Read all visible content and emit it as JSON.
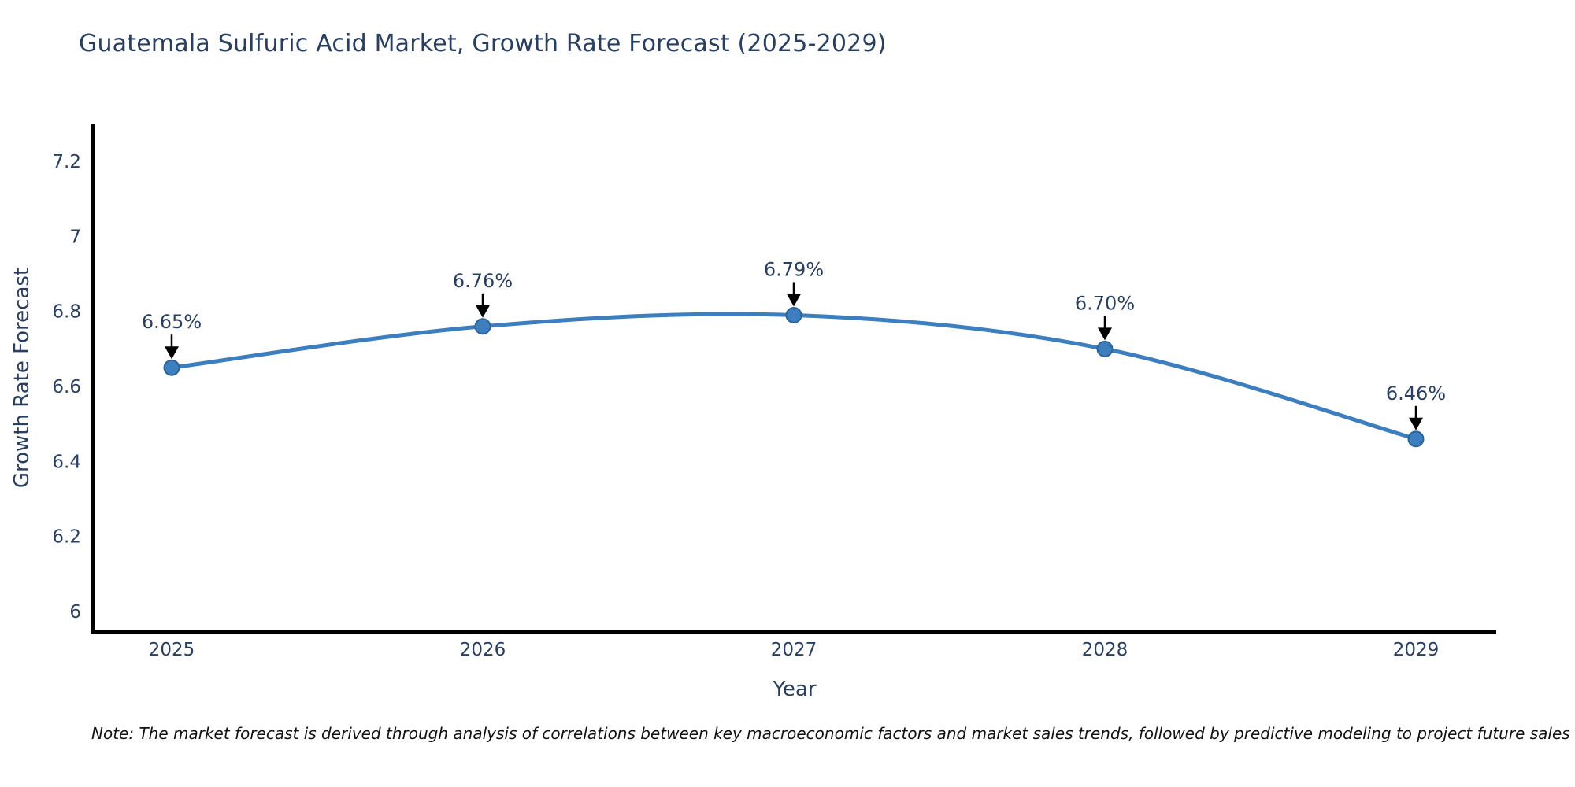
{
  "title": "Guatemala Sulfuric Acid Market, Growth Rate Forecast (2025-2029)",
  "note": "Note: The market forecast is derived through analysis of correlations between key macroeconomic factors and market sales trends, followed by predictive modeling to project future sales",
  "chart_data": {
    "type": "line",
    "title": "Guatemala Sulfuric Acid Market, Growth Rate Forecast (2025-2029)",
    "x": [
      2025,
      2026,
      2027,
      2028,
      2029
    ],
    "series": [
      {
        "name": "Growth Rate Forecast",
        "values": [
          6.65,
          6.76,
          6.79,
          6.7,
          6.46
        ]
      }
    ],
    "point_labels": [
      "6.65%",
      "6.76%",
      "6.79%",
      "6.70%",
      "6.46%"
    ],
    "xlabel": "Year",
    "ylabel": "Growth Rate Forecast",
    "yticks": [
      6,
      6.2,
      6.4,
      6.6,
      6.8,
      7,
      7.2
    ],
    "ylim": [
      5.95,
      7.3
    ],
    "grid": false,
    "legend": false,
    "line_style": "smooth-spline",
    "marker_style": "circle",
    "colors": {
      "line": "#3d7ebf",
      "marker_fill": "#3d7ebf",
      "marker_edge": "#2e6496",
      "annotation_arrow": "#000000",
      "axis": "#000000",
      "text": "#2a3f5f",
      "background": "#ffffff"
    }
  }
}
